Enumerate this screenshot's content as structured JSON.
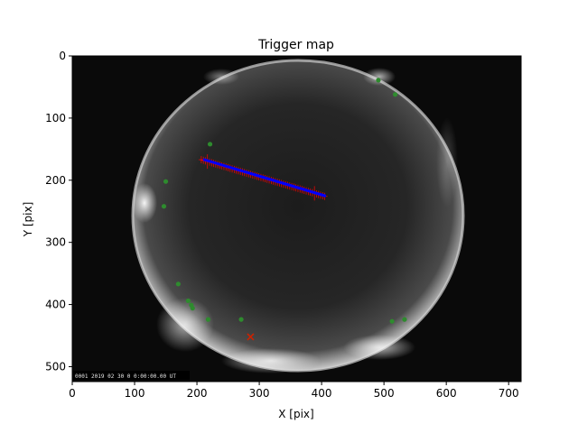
{
  "chart_data": {
    "type": "scatter",
    "title": "Trigger map",
    "xlabel": "X [pix]",
    "ylabel": "Y [pix]",
    "xlim": [
      0,
      720
    ],
    "ylim": [
      524,
      0
    ],
    "y_inverted": true,
    "grid": false,
    "legend": "none",
    "xticks": [
      0,
      100,
      200,
      300,
      400,
      500,
      600,
      700
    ],
    "yticks": [
      0,
      100,
      200,
      300,
      400,
      500
    ],
    "background_image": "all-sky fisheye camera frame (night sky)",
    "image_timestamp_text": "0001 2019 02 30 0 0:00:00.00 UT",
    "series": [
      {
        "marker": "star-dot",
        "color": "#2e8b2e",
        "points": [
          [
            491,
            39
          ],
          [
            518,
            62
          ],
          [
            221,
            142
          ],
          [
            150,
            202
          ],
          [
            147,
            242
          ],
          [
            170,
            367
          ],
          [
            186,
            394
          ],
          [
            191,
            401
          ],
          [
            193,
            406
          ],
          [
            218,
            424
          ],
          [
            271,
            424
          ],
          [
            513,
            427
          ],
          [
            533,
            424
          ]
        ]
      },
      {
        "marker": "x",
        "color": "#cc2200",
        "points": [
          [
            286,
            452
          ]
        ]
      },
      {
        "marker": "track-errorbar",
        "color": "#ff0000",
        "start": [
          207,
          167
        ],
        "end": [
          405,
          226
        ]
      },
      {
        "marker": "track-dot",
        "color": "#0000ff",
        "start": [
          212,
          167
        ],
        "end": [
          405,
          225
        ]
      }
    ]
  }
}
